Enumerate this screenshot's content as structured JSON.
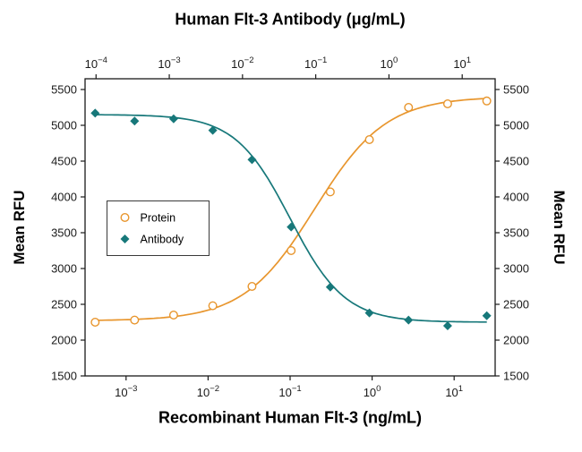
{
  "chart_data": {
    "type": "scatter",
    "x_scale": "log",
    "grid": false,
    "top_axis": {
      "title": "Human Flt-3 Antibody (μg/mL)",
      "min_log": -4.15,
      "max_log": 1.45,
      "tick_exponents": [
        -4,
        -3,
        -2,
        -1,
        0,
        1
      ]
    },
    "bottom_axis": {
      "title": "Recombinant Human Flt-3 (ng/mL)",
      "min_log": -3.5,
      "max_log": 1.5,
      "tick_exponents": [
        -3,
        -2,
        -1,
        0,
        1
      ]
    },
    "left_axis": {
      "title": "Mean RFU"
    },
    "right_axis": {
      "title": "Mean RFU"
    },
    "ylim": [
      1500,
      5650
    ],
    "y_ticks": [
      1500,
      2000,
      2500,
      3000,
      3500,
      4000,
      4500,
      5000,
      5500
    ],
    "series": [
      {
        "name": "Protein",
        "marker": "open-circle",
        "color": "#E8962E",
        "x": [
          0.00042,
          0.00127,
          0.0038,
          0.0114,
          0.0343,
          0.103,
          0.309,
          0.926,
          2.78,
          8.33,
          25
        ],
        "y": [
          2250,
          2280,
          2350,
          2480,
          2750,
          3250,
          4070,
          4800,
          5250,
          5300,
          5340
        ],
        "fit": {
          "type": "4PL",
          "bottom": 2270,
          "top": 5400,
          "ec50": 0.2,
          "hill": 1.0,
          "direction": "increasing"
        }
      },
      {
        "name": "Antibody",
        "marker": "filled-diamond",
        "color": "#17787A",
        "x": [
          0.00042,
          0.00127,
          0.0038,
          0.0114,
          0.0343,
          0.103,
          0.309,
          0.926,
          2.78,
          8.33,
          25
        ],
        "y": [
          5170,
          5060,
          5090,
          4930,
          4520,
          3580,
          2740,
          2380,
          2280,
          2200,
          2340
        ],
        "fit": {
          "type": "4PL",
          "bottom": 2250,
          "top": 5150,
          "ec50": 0.1,
          "hill": 1.3,
          "direction": "decreasing"
        }
      }
    ],
    "legend": {
      "position": "center-left",
      "border": true
    }
  }
}
